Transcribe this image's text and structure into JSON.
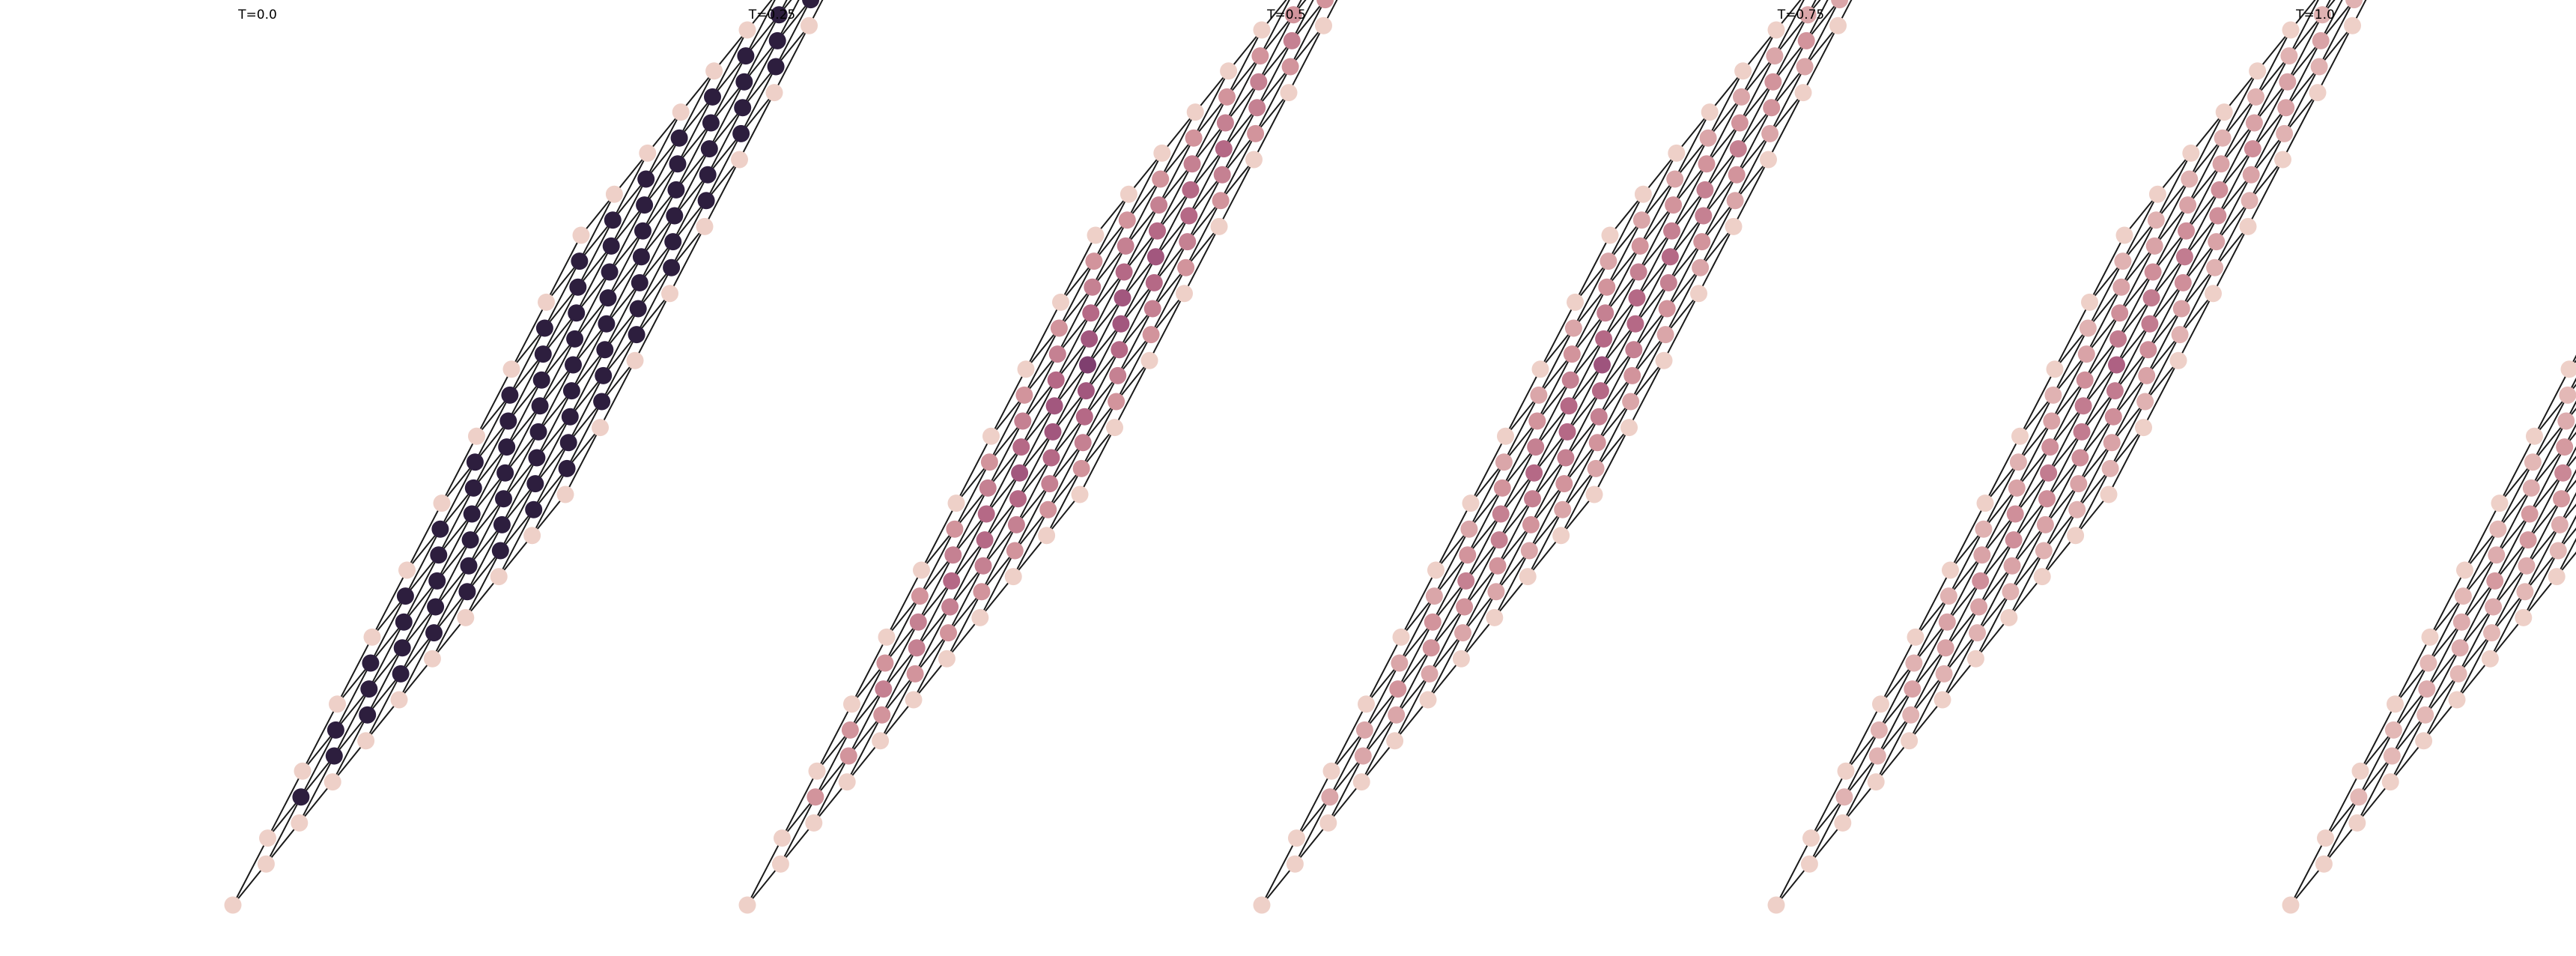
{
  "figure": {
    "panels": [
      {
        "title": "T=0.0",
        "levels": [
          0.0,
          0.0,
          0.0,
          0.0,
          0.0,
          0.0
        ]
      },
      {
        "title": "T=0.25",
        "levels": [
          0.0,
          0.35,
          0.52,
          0.62,
          0.72,
          0.8
        ]
      },
      {
        "title": "T=0.5",
        "levels": [
          0.0,
          0.5,
          0.62,
          0.72,
          0.8,
          0.86
        ]
      },
      {
        "title": "T=0.75",
        "levels": [
          0.0,
          0.58,
          0.7,
          0.78,
          0.85,
          0.9
        ]
      },
      {
        "title": "T=1.0",
        "levels": [
          0.0,
          0.65,
          0.75,
          0.82,
          0.88,
          0.92
        ]
      }
    ],
    "grid_size": 11,
    "colormap": [
      "#2d1e3e",
      "#5c2f5e",
      "#8a4475",
      "#b26484",
      "#d2949c",
      "#eed0c8"
    ],
    "edge_color": "#1a1a1a"
  }
}
